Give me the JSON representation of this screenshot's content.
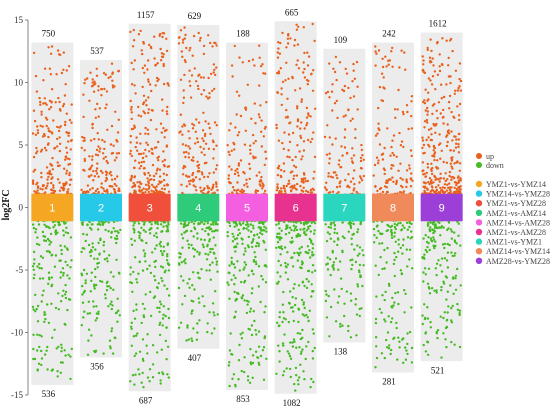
{
  "chart_data": {
    "type": "scatter",
    "ylabel": "log2FC",
    "ylim": [
      -15,
      15
    ],
    "yticks": [
      -15,
      -10,
      -5,
      0,
      5,
      10,
      15
    ],
    "legend_position": "right",
    "direction_legend": [
      {
        "label": "up",
        "color": "#e8601c"
      },
      {
        "label": "down",
        "color": "#44bb22"
      }
    ],
    "groups": [
      {
        "id": "1",
        "name": "YMZ1-vs-YMZ14",
        "color": "#f5a623",
        "up_count": "750",
        "down_count": "536",
        "y_max": 13.2,
        "y_min": -14.2
      },
      {
        "id": "2",
        "name": "YMZ14-vs-YMZ28",
        "color": "#27c9e8",
        "up_count": "537",
        "down_count": "356",
        "y_max": 11.8,
        "y_min": -12.0
      },
      {
        "id": "3",
        "name": "YMZ1-vs-YMZ28",
        "color": "#f04f3c",
        "up_count": "1157",
        "down_count": "687",
        "y_max": 14.7,
        "y_min": -14.7
      },
      {
        "id": "4",
        "name": "AMZ1-vs-AMZ14",
        "color": "#2ecb7a",
        "up_count": "629",
        "down_count": "407",
        "y_max": 14.6,
        "y_min": -11.3
      },
      {
        "id": "5",
        "name": "AMZ14-vs-AMZ28",
        "color": "#f35fe0",
        "up_count": "188",
        "down_count": "853",
        "y_max": 13.2,
        "y_min": -14.6
      },
      {
        "id": "6",
        "name": "AMZ1-vs-AMZ28",
        "color": "#e8328f",
        "up_count": "665",
        "down_count": "1082",
        "y_max": 14.9,
        "y_min": -14.9
      },
      {
        "id": "7",
        "name": "AMZ1-vs-YMZ1",
        "color": "#2ad6be",
        "up_count": "109",
        "down_count": "138",
        "y_max": 12.7,
        "y_min": -10.8
      },
      {
        "id": "8",
        "name": "AMZ14-vs-YMZ14",
        "color": "#f08a5a",
        "up_count": "242",
        "down_count": "281",
        "y_max": 13.2,
        "y_min": -13.2
      },
      {
        "id": "9",
        "name": "AMZ28-vs-YMZ28",
        "color": "#9b3fd8",
        "up_count": "1612",
        "down_count": "521",
        "y_max": 14.0,
        "y_min": -12.3
      }
    ]
  }
}
